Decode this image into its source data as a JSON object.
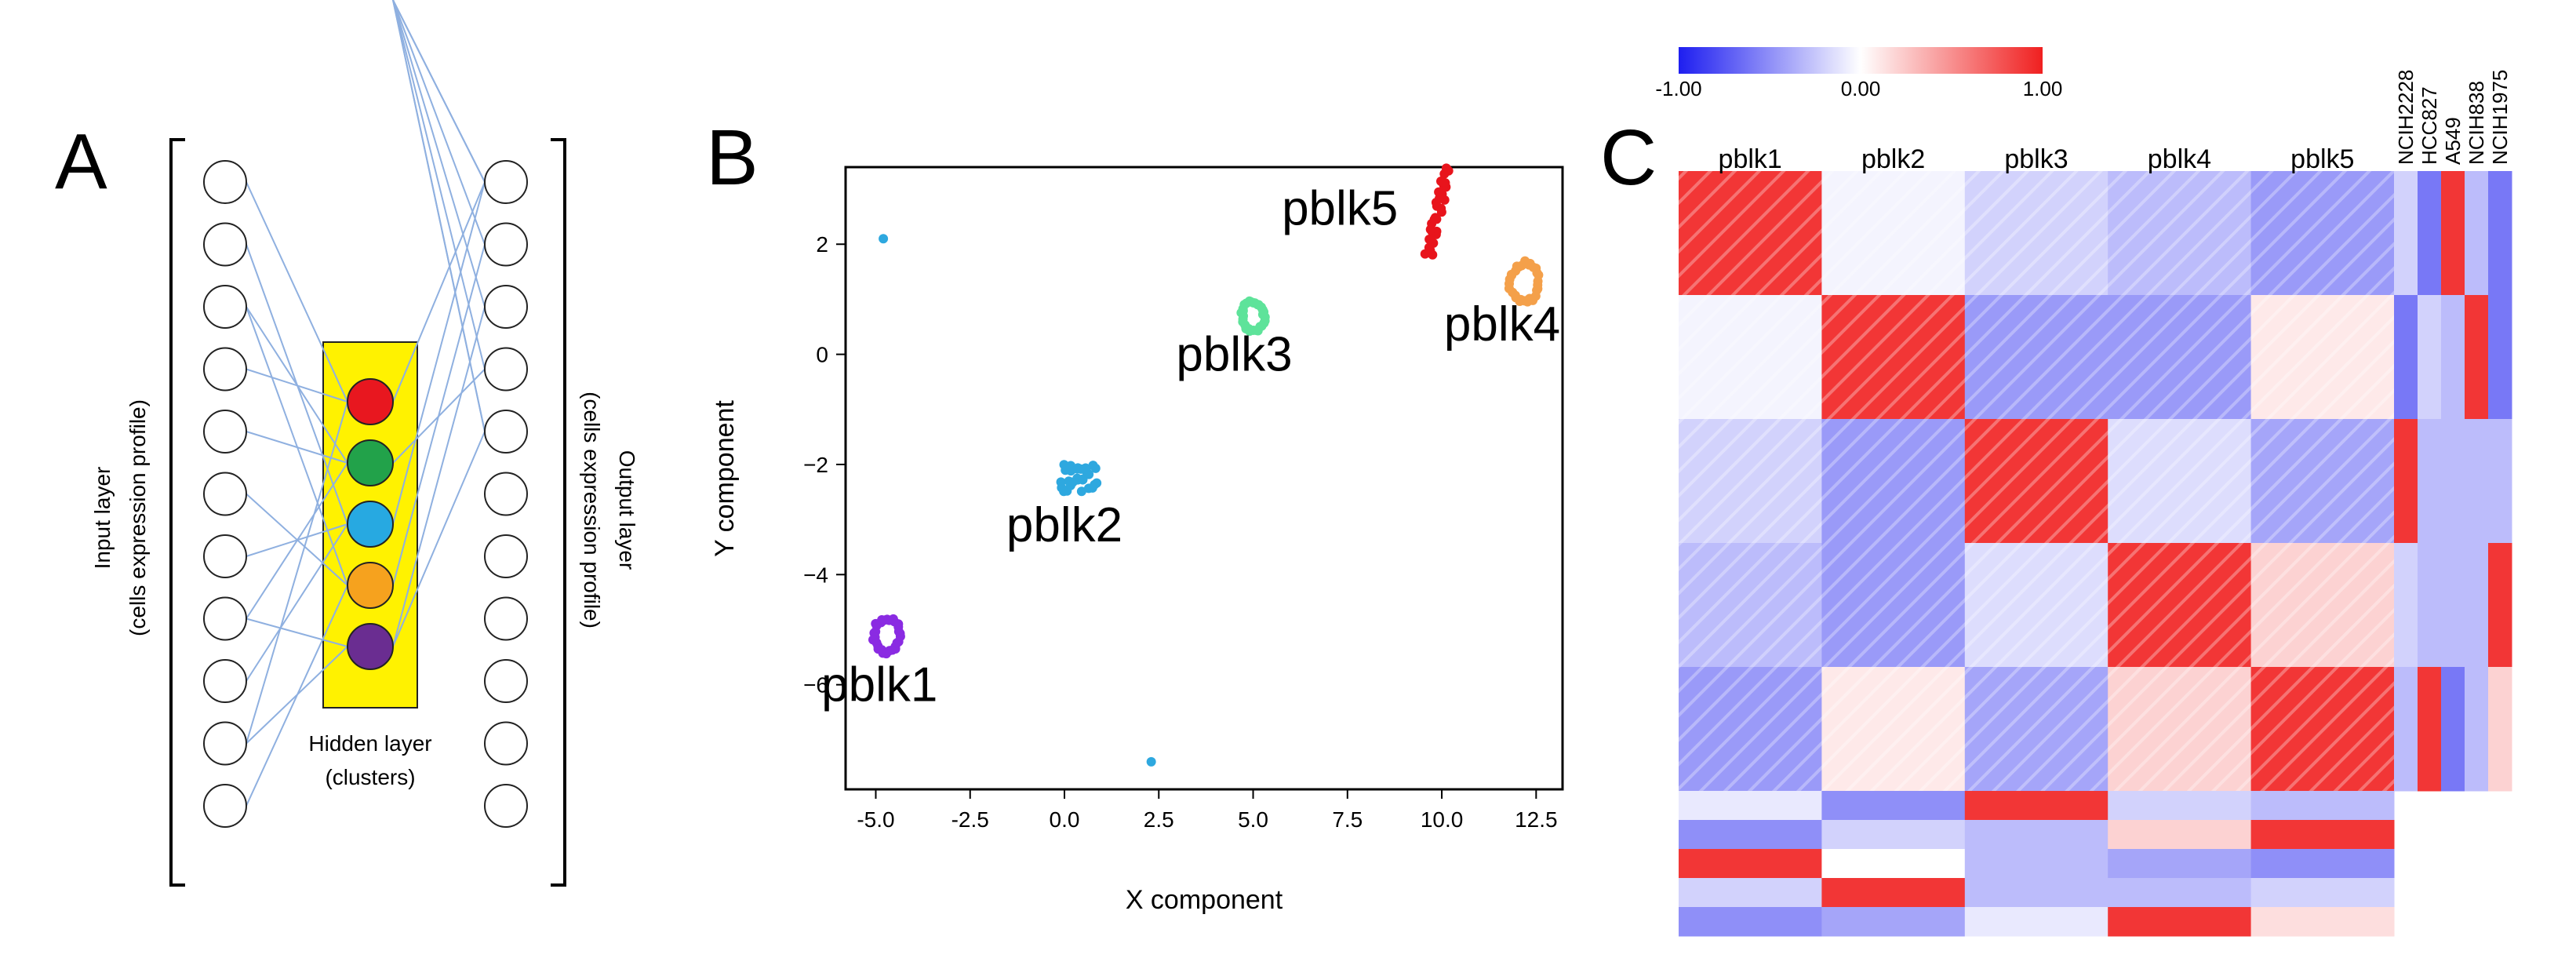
{
  "panelA": {
    "letter": "A",
    "input_label_1": "Input layer",
    "input_label_2": "(cells expression profile)",
    "output_label_1": "Output layer",
    "output_label_2": "(cells expression profile)",
    "hidden_label_1": "Hidden layer",
    "hidden_label_2": "(clusters)",
    "input_node_count": 11,
    "output_node_count": 11,
    "hidden_nodes": [
      {
        "name": "hidden-node-red",
        "color": "#e8171f"
      },
      {
        "name": "hidden-node-green",
        "color": "#22a24a"
      },
      {
        "name": "hidden-node-blue",
        "color": "#27a9e1"
      },
      {
        "name": "hidden-node-orange",
        "color": "#f6a21e"
      },
      {
        "name": "hidden-node-purple",
        "color": "#6a2d91"
      }
    ],
    "box_color": "#fff200",
    "edge_color": "#8fb0e0"
  },
  "panelB": {
    "letter": "B",
    "chart_data": {
      "type": "scatter",
      "title": "",
      "xlabel": "X component",
      "ylabel": "Y component",
      "xlim": [
        -5.8,
        13.2
      ],
      "ylim": [
        -7.9,
        3.4
      ],
      "xticks": [
        -5.0,
        -2.5,
        0.0,
        2.5,
        5.0,
        7.5,
        10.0,
        12.5
      ],
      "xtick_labels": [
        "-5.0",
        "-2.5",
        "0.0",
        "2.5",
        "5.0",
        "7.5",
        "10.0",
        "12.5"
      ],
      "yticks": [
        2,
        0,
        -2,
        -4,
        -6
      ],
      "ytick_labels": [
        "2",
        "0",
        "−2",
        "−4",
        "−6"
      ],
      "series": [
        {
          "name": "pblk1",
          "color": "#8a2be2",
          "cx": -4.7,
          "cy": -5.1,
          "radius": 0.35,
          "shape": "ring",
          "label_x": -4.9,
          "label_y": -6.3
        },
        {
          "name": "pblk2",
          "color": "#2ea8df",
          "cx": 0.4,
          "cy": -2.25,
          "radius": 0.5,
          "shape": "cloud",
          "label_x": 0.0,
          "label_y": -3.4
        },
        {
          "name": "pblk3",
          "color": "#5ee39a",
          "cx": 5.0,
          "cy": 0.7,
          "radius": 0.3,
          "shape": "ring",
          "label_x": 4.5,
          "label_y": -0.3
        },
        {
          "name": "pblk4",
          "color": "#f4a04a",
          "cx": 12.2,
          "cy": 1.3,
          "radius": 0.4,
          "shape": "ring",
          "label_x": 11.6,
          "label_y": 0.25
        },
        {
          "name": "pblk5",
          "color": "#e8141c",
          "cx": 9.9,
          "cy": 2.6,
          "radius": 0.35,
          "shape": "streak",
          "label_x": 7.3,
          "label_y": 2.35
        }
      ],
      "outliers": [
        {
          "x": -4.8,
          "y": 2.1,
          "color": "#2ea8df"
        },
        {
          "x": 2.3,
          "y": -7.4,
          "color": "#2ea8df"
        }
      ]
    }
  },
  "panelC": {
    "letter": "C",
    "chart_data": {
      "type": "heatmap",
      "colorbar": {
        "min": -1.0,
        "mid": 0.0,
        "max": 1.0,
        "labels": [
          "-1.00",
          "0.00",
          "1.00"
        ]
      },
      "column_groups": [
        "pblk1",
        "pblk2",
        "pblk3",
        "pblk4",
        "pblk5"
      ],
      "cell_lines": [
        "NCIH2228",
        "HCC827",
        "A549",
        "NCIH838",
        "NCIH1975"
      ],
      "block_correlations": [
        [
          0.9,
          -0.05,
          -0.2,
          -0.3,
          -0.45
        ],
        [
          -0.05,
          0.9,
          -0.45,
          -0.45,
          0.1
        ],
        [
          -0.2,
          -0.45,
          0.9,
          -0.15,
          -0.4
        ],
        [
          -0.3,
          -0.45,
          -0.15,
          0.9,
          0.2
        ],
        [
          -0.45,
          0.1,
          -0.4,
          0.2,
          0.9
        ]
      ],
      "cell_line_strip": [
        [
          -0.2,
          -0.6,
          0.9,
          -0.3,
          -0.6
        ],
        [
          -0.6,
          -0.2,
          -0.3,
          0.9,
          -0.6
        ],
        [
          0.9,
          -0.3,
          -0.3,
          -0.3,
          -0.3
        ],
        [
          -0.2,
          -0.3,
          -0.3,
          -0.3,
          0.9
        ],
        [
          -0.3,
          0.9,
          -0.6,
          -0.3,
          0.2
        ]
      ],
      "bottom_rows": [
        [
          -0.1,
          -0.5,
          0.9,
          -0.2,
          -0.3
        ],
        [
          -0.5,
          -0.2,
          -0.3,
          0.2,
          0.9
        ],
        [
          0.9,
          0.0,
          -0.3,
          -0.4,
          -0.5
        ],
        [
          -0.2,
          0.9,
          -0.3,
          -0.3,
          -0.2
        ],
        [
          -0.5,
          -0.4,
          -0.1,
          0.9,
          0.15
        ]
      ],
      "color_low": "#1e1ef0",
      "color_mid": "#ffffff",
      "color_high": "#f02020"
    }
  }
}
